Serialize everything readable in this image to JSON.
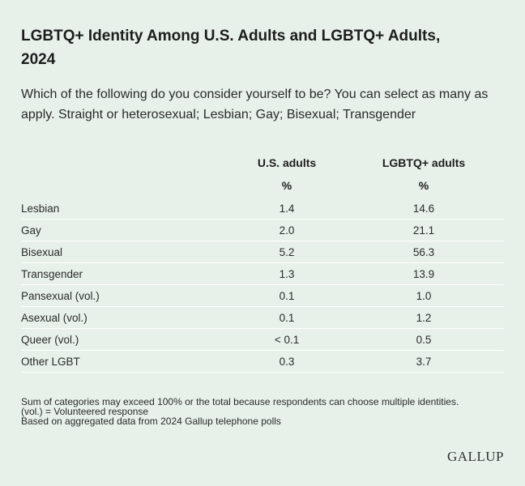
{
  "title": "LGBTQ+ Identity Among U.S. Adults and LGBTQ+ Adults, 2024",
  "subtitle": "Which of the following do you consider yourself to be? You can select as many as apply. Straight or heterosexual; Lesbian; Gay; Bisexual; Transgender",
  "chart_data": {
    "type": "table",
    "columns": [
      "U.S. adults",
      "LGBTQ+ adults"
    ],
    "unit_row": [
      "%",
      "%"
    ],
    "rows": [
      {
        "label": "Lesbian",
        "values": [
          "1.4",
          "14.6"
        ]
      },
      {
        "label": "Gay",
        "values": [
          "2.0",
          "21.1"
        ]
      },
      {
        "label": "Bisexual",
        "values": [
          "5.2",
          "56.3"
        ]
      },
      {
        "label": "Transgender",
        "values": [
          "1.3",
          "13.9"
        ]
      },
      {
        "label": "Pansexual (vol.)",
        "values": [
          "0.1",
          "1.0"
        ]
      },
      {
        "label": "Asexual (vol.)",
        "values": [
          "0.1",
          "1.2"
        ]
      },
      {
        "label": "Queer (vol.)",
        "values": [
          "< 0.1",
          "0.5"
        ]
      },
      {
        "label": "Other LGBT",
        "values": [
          "0.3",
          "3.7"
        ]
      }
    ]
  },
  "notes": [
    "Sum of categories may exceed 100% or the total because respondents can choose multiple identities.",
    "(vol.) = Volunteered response",
    "Based on aggregated data from 2024 Gallup telephone polls"
  ],
  "logo": "GALLUP",
  "colors": {
    "background": "#e7f1e9",
    "row_divider": "#ffffff",
    "text": "#1d1d1d"
  }
}
